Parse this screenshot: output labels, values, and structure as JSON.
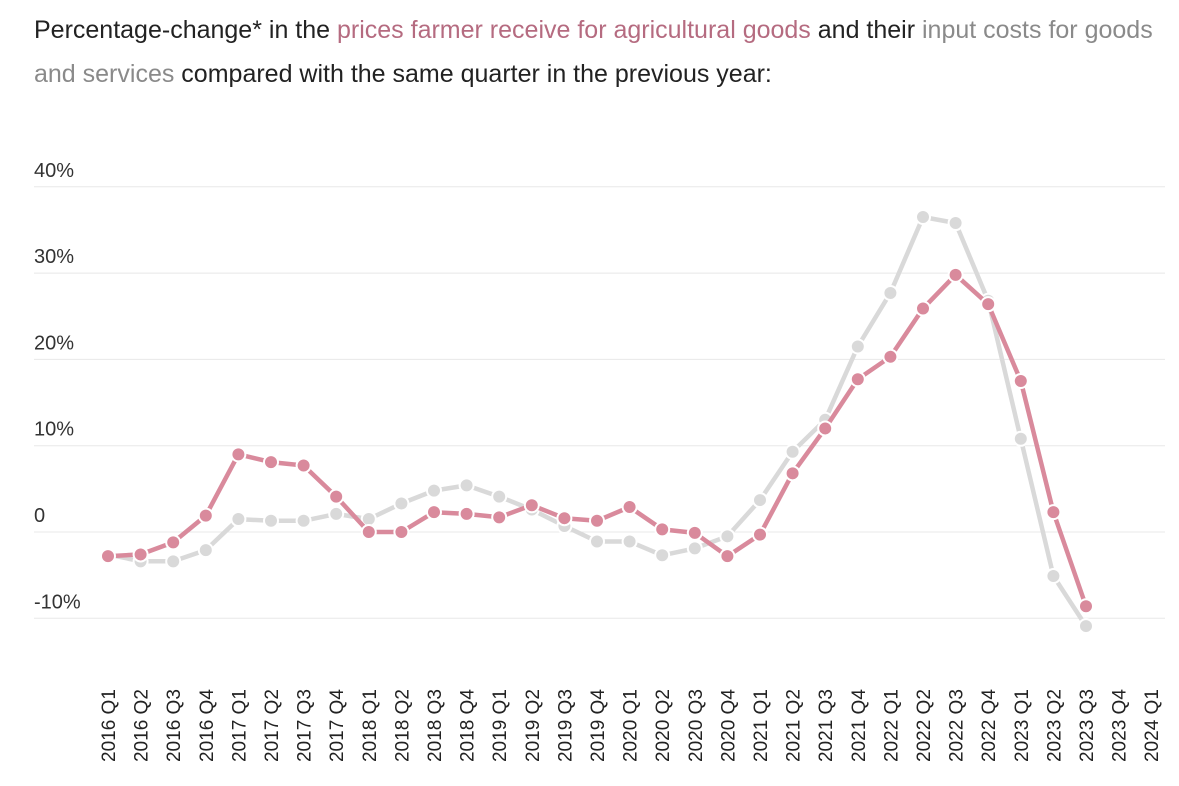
{
  "title": {
    "part1": "Percentage-change* in the ",
    "part2": "prices farmer receive for agricultural goods",
    "part3": " and their ",
    "part4": "input costs for goods and services",
    "part5": " compared with the same quarter in the previous year:"
  },
  "colors": {
    "prices": "#d98a9c",
    "prices_text": "#b56b80",
    "inputs": "#d9d9d9",
    "inputs_text": "#8a8a8a",
    "grid": "#e8e8e8"
  },
  "chart_data": {
    "type": "line",
    "categories": [
      "2016 Q1",
      "2016 Q2",
      "2016 Q3",
      "2016 Q4",
      "2017 Q1",
      "2017 Q2",
      "2017 Q3",
      "2017 Q4",
      "2018 Q1",
      "2018 Q2",
      "2018 Q3",
      "2018 Q4",
      "2019 Q1",
      "2019 Q2",
      "2019 Q3",
      "2019 Q4",
      "2020 Q1",
      "2020 Q2",
      "2020 Q3",
      "2020 Q4",
      "2021 Q1",
      "2021 Q2",
      "2021 Q3",
      "2021 Q4",
      "2022 Q1",
      "2022 Q2",
      "2022 Q3",
      "2022 Q4",
      "2023 Q1",
      "2023 Q2",
      "2023 Q3",
      "2023 Q4",
      "2024 Q1"
    ],
    "series": [
      {
        "key": "inputs",
        "values": [
          -2.6,
          -3.4,
          -3.4,
          -2.1,
          1.5,
          1.3,
          1.3,
          2.1,
          1.5,
          3.3,
          4.8,
          5.4,
          4.1,
          2.6,
          0.7,
          -1.1,
          -1.1,
          -2.7,
          -1.9,
          -0.5,
          3.7,
          9.3,
          13.0,
          21.5,
          27.7,
          36.5,
          35.8,
          26.8,
          10.8,
          -5.1,
          -10.9,
          null,
          null
        ]
      },
      {
        "key": "prices",
        "values": [
          -2.8,
          -2.6,
          -1.2,
          1.9,
          9.0,
          8.1,
          7.7,
          4.1,
          0.0,
          0.0,
          2.3,
          2.1,
          1.7,
          3.1,
          1.6,
          1.3,
          2.9,
          0.3,
          -0.1,
          -2.8,
          -0.3,
          6.8,
          12.0,
          17.7,
          20.3,
          25.9,
          29.8,
          26.4,
          17.5,
          2.3,
          -8.6,
          null,
          null
        ]
      }
    ],
    "yticks": [
      {
        "value": 40,
        "label": "40%"
      },
      {
        "value": 30,
        "label": "30%"
      },
      {
        "value": 20,
        "label": "20%"
      },
      {
        "value": 10,
        "label": "10%"
      },
      {
        "value": 0,
        "label": "0"
      },
      {
        "value": -10,
        "label": "-10%"
      }
    ],
    "ylim": [
      -10,
      40
    ],
    "grid": true,
    "legend": "none"
  }
}
